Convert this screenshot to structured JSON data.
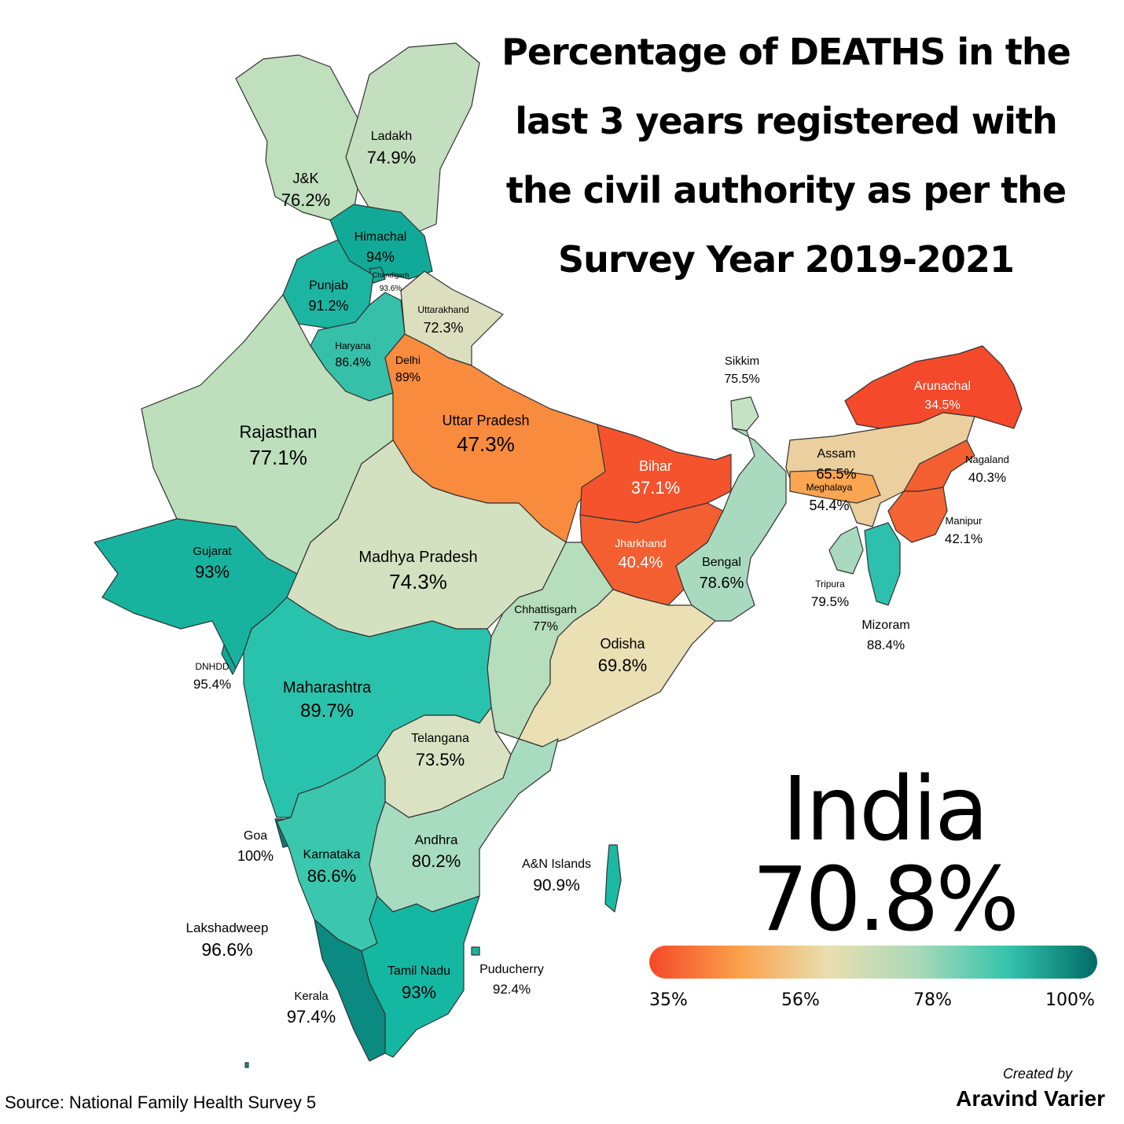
{
  "title_lines": [
    "Percentage of DEATHS in the",
    "last 3 years registered with",
    "the civil authority as per the",
    "Survey Year 2019-2021"
  ],
  "national": {
    "name": "India",
    "value": "70.8%"
  },
  "legend": {
    "ticks": [
      "35%",
      "56%",
      "78%",
      "100%"
    ],
    "colors": [
      "#f4492a",
      "#fba04a",
      "#e9dfb0",
      "#a9d9b8",
      "#35c4ad",
      "#006b66"
    ]
  },
  "credit": {
    "label": "Created by",
    "name": "Aravind Varier"
  },
  "source": "Source: National Family Health Survey 5",
  "regions": [
    {
      "name": "Ladakh",
      "value": "74.9%",
      "pct": 74.9,
      "color": "#c4dfbf"
    },
    {
      "name": "J&K",
      "value": "76.2%",
      "pct": 76.2,
      "color": "#c0dfbd"
    },
    {
      "name": "Himachal",
      "value": "94%",
      "pct": 94,
      "color": "#11aa98"
    },
    {
      "name": "Chandigarh",
      "value": "93.6%",
      "pct": 93.6,
      "color": "#13ab99"
    },
    {
      "name": "Punjab",
      "value": "91.2%",
      "pct": 91.2,
      "color": "#1bb5a1"
    },
    {
      "name": "Uttarakhand",
      "value": "72.3%",
      "pct": 72.3,
      "color": "#dcdfbe"
    },
    {
      "name": "Haryana",
      "value": "86.4%",
      "pct": 86.4,
      "color": "#36c0aa"
    },
    {
      "name": "Delhi",
      "value": "89%",
      "pct": 89,
      "color": "#2bbca6"
    },
    {
      "name": "Rajasthan",
      "value": "77.1%",
      "pct": 77.1,
      "color": "#bddfbb"
    },
    {
      "name": "Uttar Pradesh",
      "value": "47.3%",
      "pct": 47.3,
      "color": "#f88b3e"
    },
    {
      "name": "Bihar",
      "value": "37.1%",
      "pct": 37.1,
      "color": "#f4532d"
    },
    {
      "name": "Sikkim",
      "value": "75.5%",
      "pct": 75.5,
      "color": "#c5e2c4"
    },
    {
      "name": "Arunachal",
      "value": "34.5%",
      "pct": 34.5,
      "color": "#f4492a"
    },
    {
      "name": "Assam",
      "value": "65.5%",
      "pct": 65.5,
      "color": "#ebcf9e"
    },
    {
      "name": "Nagaland",
      "value": "40.3%",
      "pct": 40.3,
      "color": "#f45f31"
    },
    {
      "name": "Meghalaya",
      "value": "54.4%",
      "pct": 54.4,
      "color": "#f9a552"
    },
    {
      "name": "Manipur",
      "value": "42.1%",
      "pct": 42.1,
      "color": "#f56434"
    },
    {
      "name": "Tripura",
      "value": "79.5%",
      "pct": 79.5,
      "color": "#a9dabf"
    },
    {
      "name": "Mizoram",
      "value": "88.4%",
      "pct": 88.4,
      "color": "#2dc0ae"
    },
    {
      "name": "Jharkhand",
      "value": "40.4%",
      "pct": 40.4,
      "color": "#f45f31"
    },
    {
      "name": "Bengal",
      "value": "78.6%",
      "pct": 78.6,
      "color": "#a9dabf"
    },
    {
      "name": "Gujarat",
      "value": "93%",
      "pct": 93,
      "color": "#17b39f"
    },
    {
      "name": "Madhya Pradesh",
      "value": "74.3%",
      "pct": 74.3,
      "color": "#d4e1c0"
    },
    {
      "name": "Chhattisgarh",
      "value": "77%",
      "pct": 77,
      "color": "#b6ddbc"
    },
    {
      "name": "Odisha",
      "value": "69.8%",
      "pct": 69.8,
      "color": "#ebdfb4"
    },
    {
      "name": "DNHDD",
      "value": "95.4%",
      "pct": 95.4,
      "color": "#10a997"
    },
    {
      "name": "Maharashtra",
      "value": "89.7%",
      "pct": 89.7,
      "color": "#29c3ad"
    },
    {
      "name": "Telangana",
      "value": "73.5%",
      "pct": 73.5,
      "color": "#dbe2c3"
    },
    {
      "name": "Goa",
      "value": "100%",
      "pct": 100,
      "color": "#0b7c75"
    },
    {
      "name": "Karnataka",
      "value": "86.6%",
      "pct": 86.6,
      "color": "#3bc7ae"
    },
    {
      "name": "Andhra",
      "value": "80.2%",
      "pct": 80.2,
      "color": "#a8dcc0"
    },
    {
      "name": "A&N Islands",
      "value": "90.9%",
      "pct": 90.9,
      "color": "#1bb9a4"
    },
    {
      "name": "Lakshadweep",
      "value": "96.6%",
      "pct": 96.6,
      "color": "#0e9d8f"
    },
    {
      "name": "Kerala",
      "value": "97.4%",
      "pct": 97.4,
      "color": "#0a8a80"
    },
    {
      "name": "Tamil Nadu",
      "value": "93%",
      "pct": 93,
      "color": "#14b7a2"
    },
    {
      "name": "Puducherry",
      "value": "92.4%",
      "pct": 92.4,
      "color": "#16b3a0"
    }
  ]
}
